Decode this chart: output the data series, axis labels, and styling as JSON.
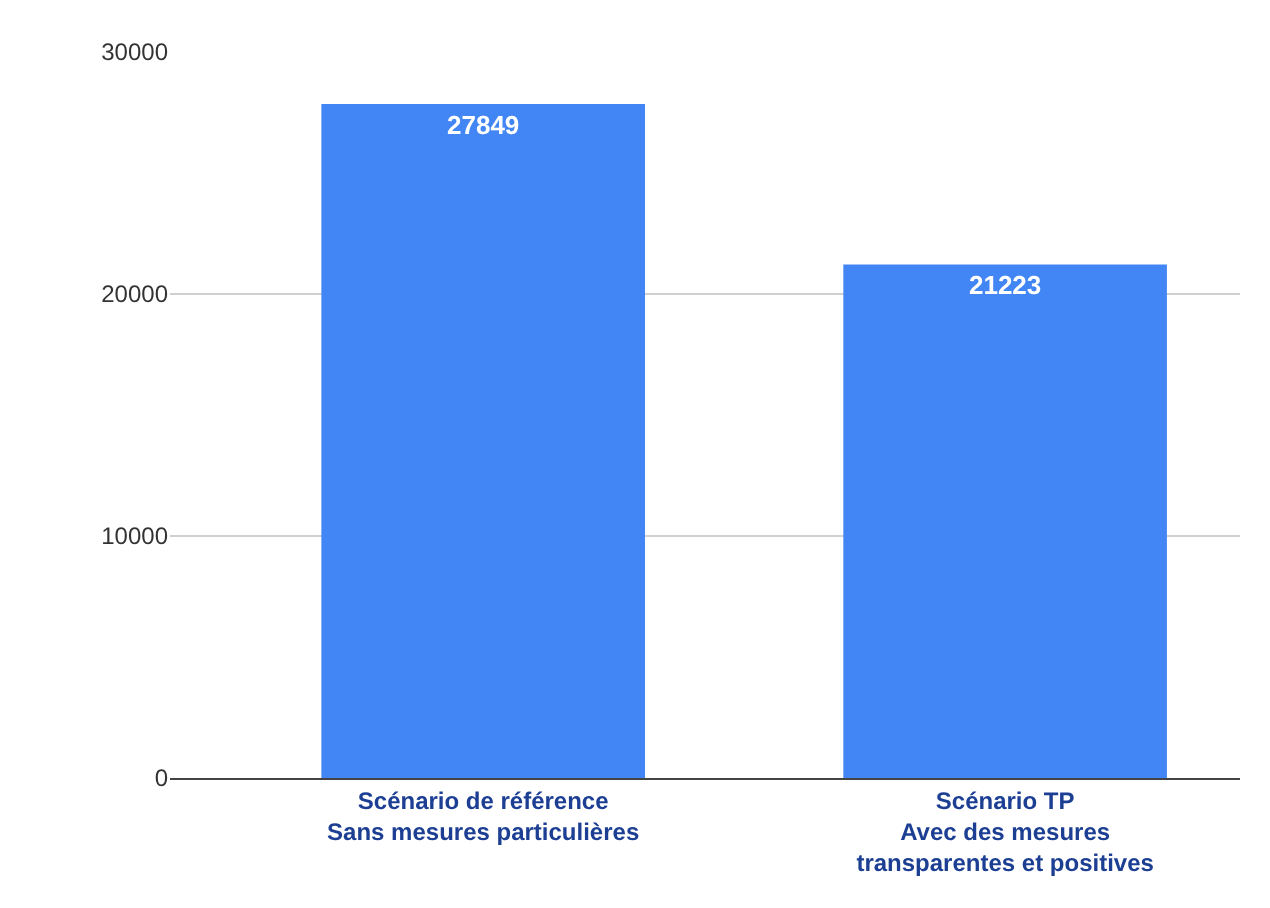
{
  "chart_data": {
    "type": "bar",
    "categories": [
      "Scénario de référence\nSans mesures particulières",
      "Scénario TP\nAvec des mesures\ntransparentes et positives"
    ],
    "values": [
      27849,
      21223
    ],
    "color": "#4285f4",
    "data_labels": true,
    "ylim": [
      0,
      30000
    ],
    "yticks": [
      0,
      10000,
      20000,
      30000
    ],
    "grid": "y",
    "legend": false
  }
}
